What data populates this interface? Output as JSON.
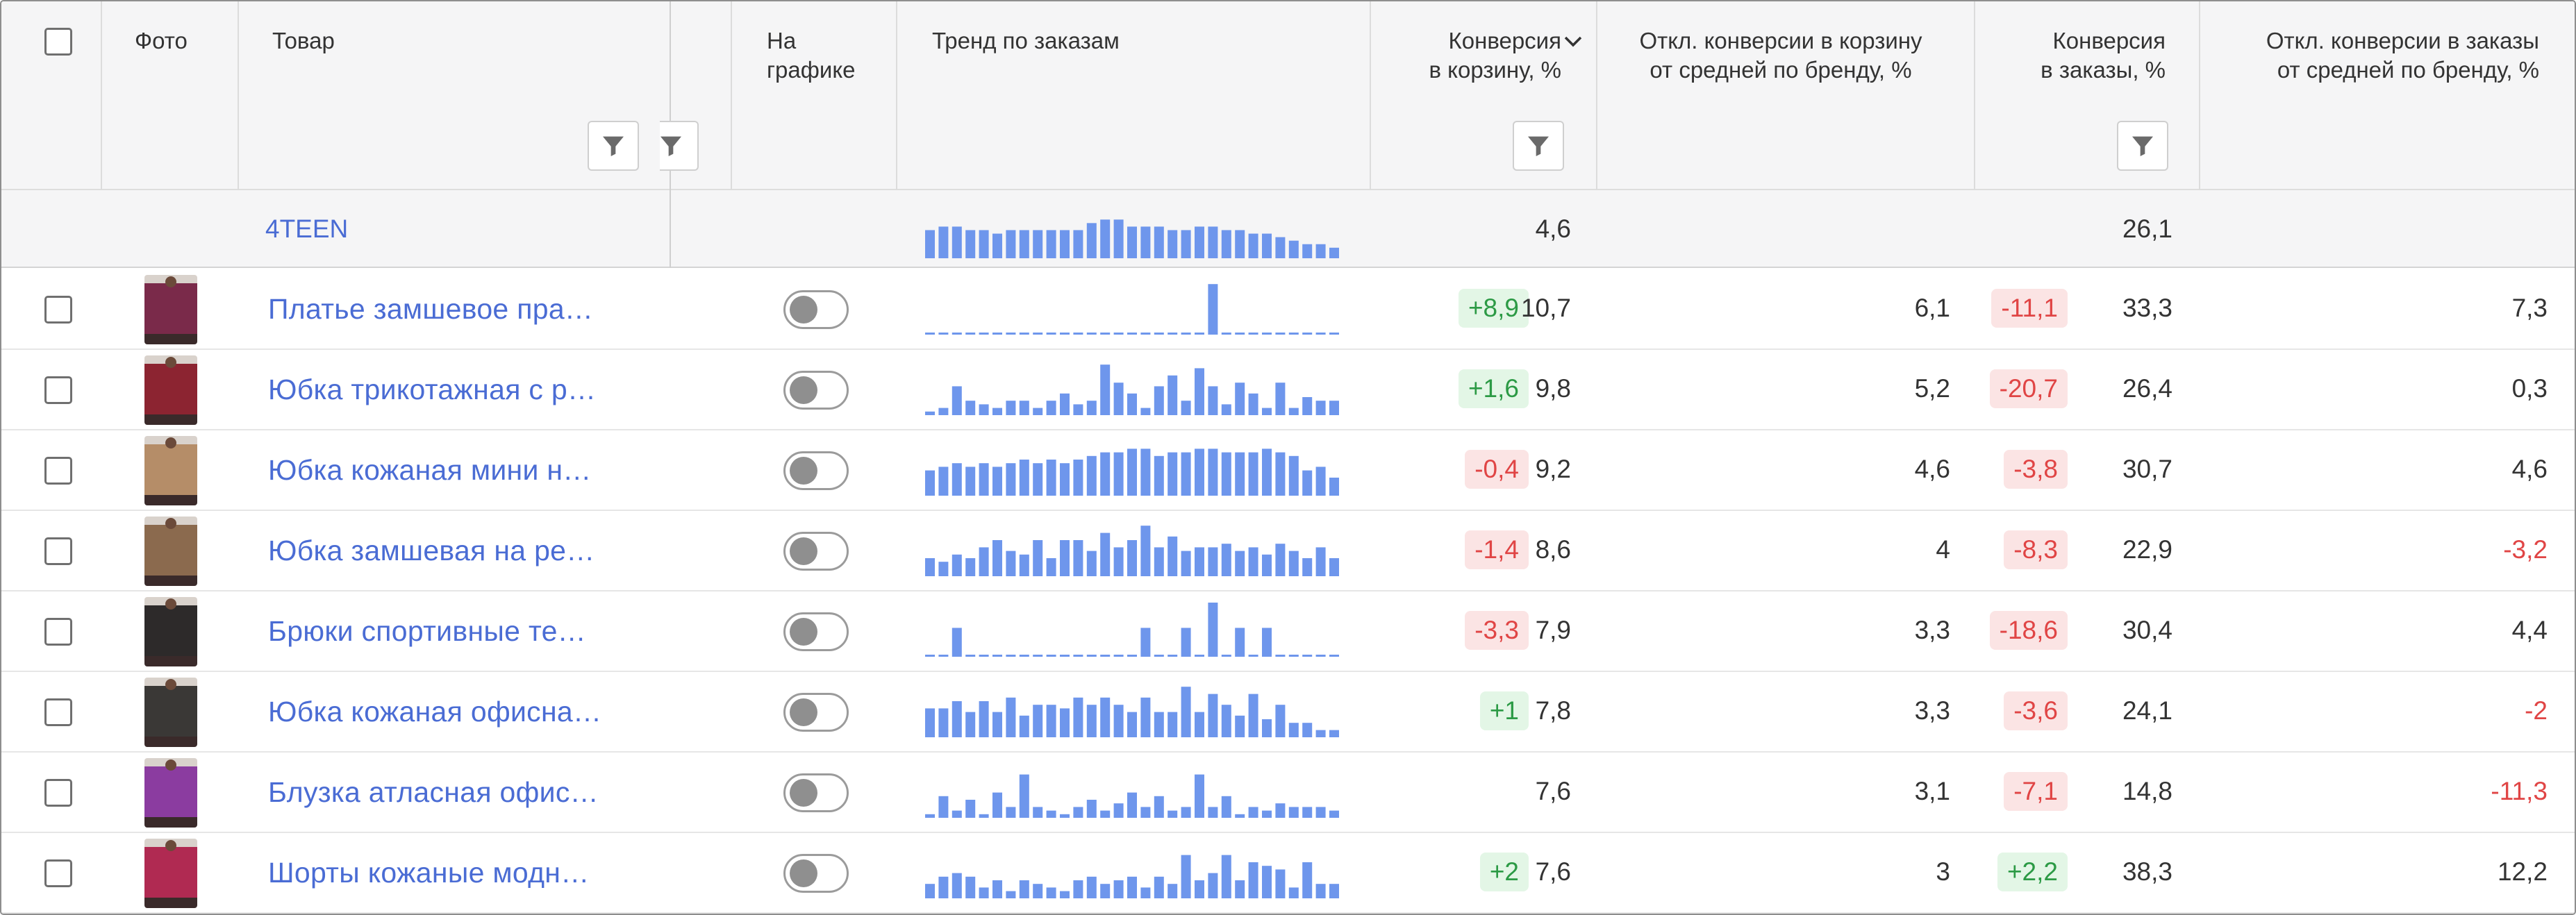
{
  "header": {
    "photo": "Фото",
    "product": "Товар",
    "on_chart_1": "На",
    "on_chart_2": "графике",
    "trend": "Тренд по заказам",
    "conv_cart_1": "Конверсия",
    "conv_cart_2": "в корзину, %",
    "dev_cart_1": "Откл. конверсии в корзину",
    "dev_cart_2": "от средней по бренду, %",
    "conv_orders_1": "Конверсия",
    "conv_orders_2": "в заказы, %",
    "dev_orders_1": "Откл. конверсии в заказы",
    "dev_orders_2": "от средней по бренду, %",
    "sort_icon": "chevron-down-icon",
    "filter_icon": "filter-icon"
  },
  "colors": {
    "accent": "#4a6cd4",
    "bar": "#6e96ec",
    "pos": "#2c9a45",
    "pos_bg": "#e3f6e6",
    "neg": "#e04545",
    "neg_bg": "#fbe4e4"
  },
  "brand": {
    "name": "4TEEN",
    "conv_cart": "4,6",
    "conv_orders": "26,1",
    "trend": [
      8,
      9,
      9,
      8,
      8,
      7,
      8,
      8,
      8,
      8,
      8,
      8,
      10,
      11,
      11,
      9,
      9,
      9,
      8,
      8,
      9,
      9,
      8,
      8,
      7,
      7,
      6,
      5,
      4,
      4,
      3
    ]
  },
  "rows": [
    {
      "product": "Платье замшевое пра…",
      "photo_color": "#7a2a4a",
      "cart_badge": "+8,9",
      "cart_badge_type": "pos",
      "conv_cart": "10,7",
      "dev_cart": "6,1",
      "orders_badge": "-11,1",
      "orders_badge_type": "neg",
      "conv_orders": "33,3",
      "dev_orders": "7,3",
      "dev_orders_neg": false,
      "trend": [
        0,
        0,
        0,
        0,
        0,
        0,
        0,
        0,
        0,
        0,
        0,
        0,
        0,
        0,
        0,
        0,
        0,
        0,
        0,
        0,
        0,
        14,
        0,
        0,
        0,
        0,
        0,
        0,
        0,
        0,
        0
      ]
    },
    {
      "product": "Юбка трикотажная с р…",
      "photo_color": "#8c2431",
      "cart_badge": "+1,6",
      "cart_badge_type": "pos",
      "conv_cart": "9,8",
      "dev_cart": "5,2",
      "orders_badge": "-20,7",
      "orders_badge_type": "neg",
      "conv_orders": "26,4",
      "dev_orders": "0,3",
      "dev_orders_neg": false,
      "trend": [
        1,
        2,
        8,
        4,
        3,
        2,
        4,
        4,
        2,
        4,
        6,
        3,
        4,
        14,
        9,
        6,
        2,
        8,
        11,
        4,
        13,
        8,
        3,
        9,
        6,
        2,
        9,
        2,
        5,
        4,
        4
      ]
    },
    {
      "product": "Юбка кожаная мини н…",
      "photo_color": "#b58d68",
      "cart_badge": "-0,4",
      "cart_badge_type": "neg",
      "conv_cart": "9,2",
      "dev_cart": "4,6",
      "orders_badge": "-3,8",
      "orders_badge_type": "neg",
      "conv_orders": "30,7",
      "dev_orders": "4,6",
      "dev_orders_neg": false,
      "trend": [
        7,
        8,
        9,
        8,
        9,
        8,
        9,
        10,
        9,
        10,
        9,
        10,
        11,
        12,
        12,
        13,
        13,
        11,
        12,
        12,
        13,
        13,
        12,
        12,
        12,
        13,
        12,
        11,
        7,
        8,
        5
      ]
    },
    {
      "product": "Юбка замшевая на ре…",
      "photo_color": "#8b6a4e",
      "cart_badge": "-1,4",
      "cart_badge_type": "neg",
      "conv_cart": "8,6",
      "dev_cart": "4",
      "orders_badge": "-8,3",
      "orders_badge_type": "neg",
      "conv_orders": "22,9",
      "dev_orders": "-3,2",
      "dev_orders_neg": true,
      "trend": [
        5,
        4,
        6,
        5,
        8,
        10,
        7,
        6,
        10,
        5,
        10,
        10,
        7,
        12,
        8,
        10,
        14,
        8,
        11,
        7,
        8,
        8,
        9,
        7,
        8,
        6,
        9,
        7,
        5,
        8,
        5
      ]
    },
    {
      "product": "Брюки спортивные те…",
      "photo_color": "#2d2a2a",
      "cart_badge": "-3,3",
      "cart_badge_type": "neg",
      "conv_cart": "7,9",
      "dev_cart": "3,3",
      "orders_badge": "-18,6",
      "orders_badge_type": "neg",
      "conv_orders": "30,4",
      "dev_orders": "4,4",
      "dev_orders_neg": false,
      "trend": [
        0,
        0,
        8,
        0,
        0,
        0,
        0,
        0,
        0,
        0,
        0,
        0,
        0,
        0,
        0,
        0,
        8,
        0,
        0,
        8,
        0,
        15,
        0,
        8,
        0,
        8,
        0,
        0,
        0,
        0,
        0
      ]
    },
    {
      "product": "Юбка кожаная офисна…",
      "photo_color": "#3a3836",
      "cart_badge": "+1",
      "cart_badge_type": "pos",
      "conv_cart": "7,8",
      "dev_cart": "3,3",
      "orders_badge": "-3,6",
      "orders_badge_type": "neg",
      "conv_orders": "24,1",
      "dev_orders": "-2",
      "dev_orders_neg": true,
      "trend": [
        8,
        8,
        10,
        7,
        10,
        7,
        11,
        6,
        9,
        9,
        8,
        11,
        9,
        11,
        9,
        7,
        11,
        7,
        7,
        14,
        7,
        12,
        9,
        6,
        12,
        5,
        9,
        4,
        4,
        2,
        2
      ]
    },
    {
      "product": "Блузка атласная офис…",
      "photo_color": "#8b3ca0",
      "cart_badge": "",
      "cart_badge_type": "none",
      "conv_cart": "7,6",
      "dev_cart": "3,1",
      "orders_badge": "-7,1",
      "orders_badge_type": "neg",
      "conv_orders": "14,8",
      "dev_orders": "-11,3",
      "dev_orders_neg": true,
      "trend": [
        1,
        6,
        2,
        5,
        1,
        7,
        3,
        12,
        3,
        2,
        1,
        3,
        5,
        2,
        4,
        7,
        3,
        6,
        2,
        3,
        12,
        3,
        6,
        1,
        3,
        2,
        4,
        3,
        3,
        3,
        2
      ]
    },
    {
      "product": "Шорты кожаные модн…",
      "photo_color": "#b02a52",
      "cart_badge": "+2",
      "cart_badge_type": "pos",
      "conv_cart": "7,6",
      "dev_cart": "3",
      "orders_badge": "+2,2",
      "orders_badge_type": "pos",
      "conv_orders": "38,3",
      "dev_orders": "12,2",
      "dev_orders_neg": false,
      "trend": [
        4,
        6,
        7,
        6,
        3,
        5,
        2,
        5,
        4,
        3,
        2,
        5,
        6,
        4,
        5,
        6,
        3,
        6,
        4,
        12,
        5,
        7,
        12,
        5,
        10,
        9,
        8,
        3,
        10,
        4,
        4
      ]
    }
  ]
}
